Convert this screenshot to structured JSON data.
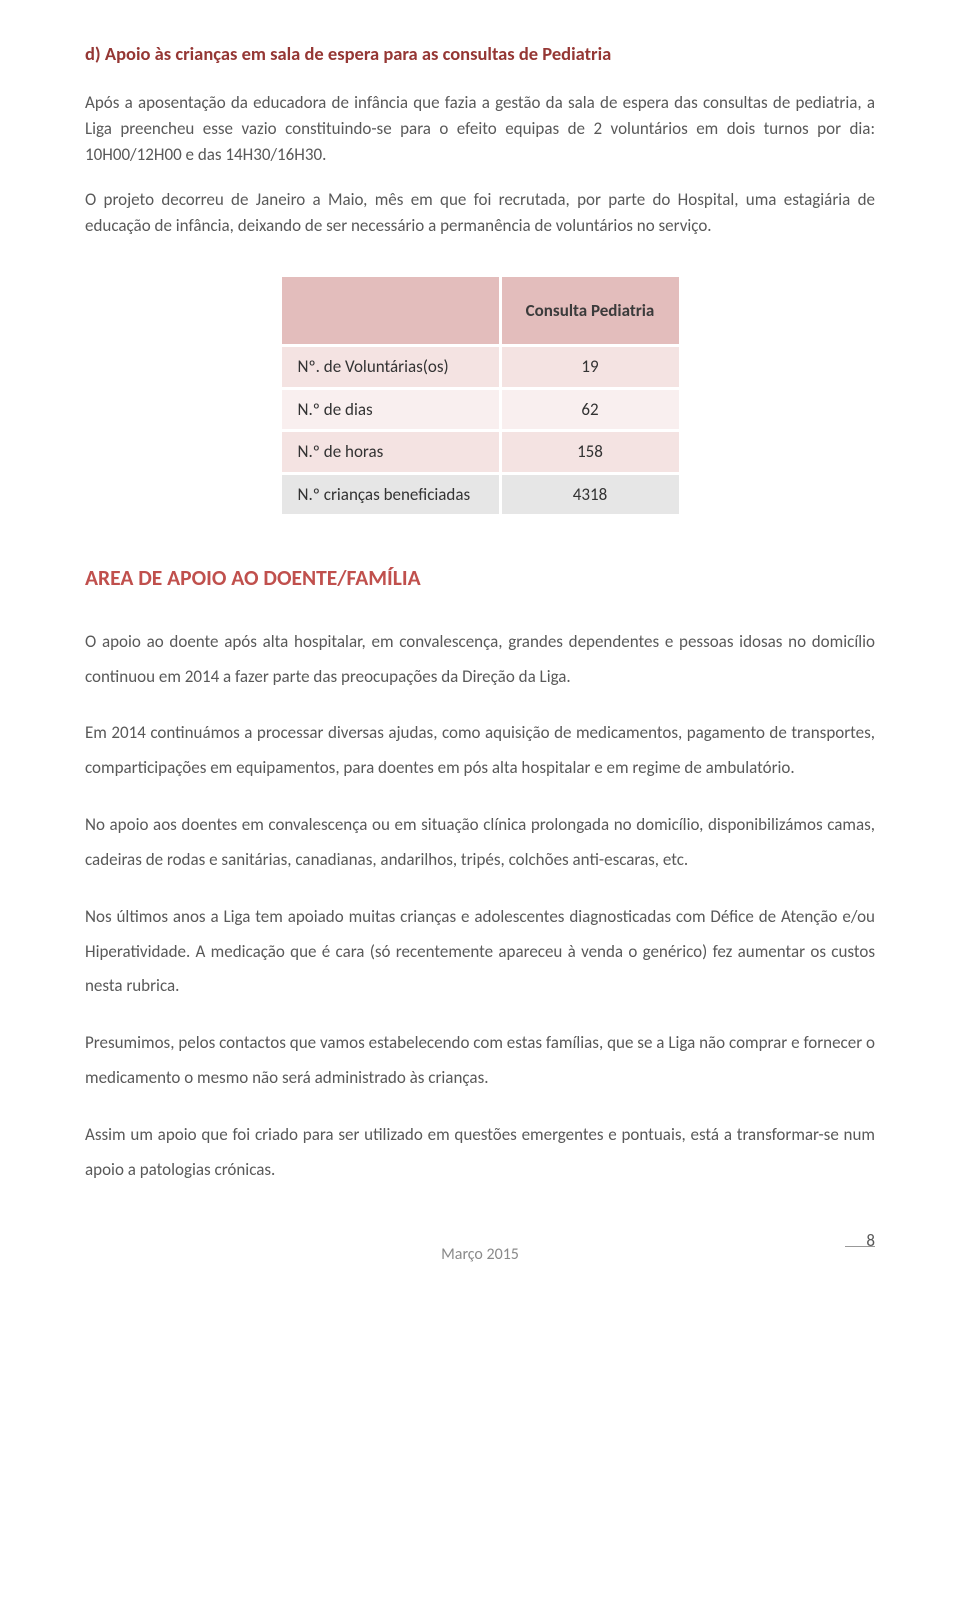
{
  "section_title": "d) Apoio às crianças em sala de espera para as consultas de Pediatria",
  "para1": "Após a aposentação da educadora de infância que fazia a gestão da sala de espera das consultas de pediatria, a Liga preencheu esse vazio constituindo-se para o efeito equipas de 2 voluntários em dois turnos por dia: 10H00/12H00 e das 14H30/16H30.",
  "para2": "O projeto decorreu de Janeiro a Maio, mês em que foi recrutada, por parte do Hospital, uma estagiária de educação de infância, deixando de ser necessário a permanência de voluntários no serviço.",
  "table": {
    "header": "Consulta Pediatria",
    "rows": [
      {
        "label": "Nº. de Voluntárias(os)",
        "value": "19"
      },
      {
        "label": "N.º de dias",
        "value": "62"
      },
      {
        "label": "N.º de horas",
        "value": "158"
      },
      {
        "label": "N.º crianças beneficiadas",
        "value": "4318"
      }
    ]
  },
  "area_title": "AREA DE APOIO AO DOENTE/FAMÍLIA",
  "body_paras": [
    "O apoio ao doente após alta hospitalar, em convalescença, grandes dependentes e pessoas idosas no domicílio continuou em 2014 a fazer parte das preocupações da Direção da Liga.",
    "Em 2014 continuámos a processar diversas ajudas, como aquisição de medicamentos, pagamento de transportes, comparticipações em equipamentos, para doentes em pós alta hospitalar e em regime de ambulatório.",
    "No apoio aos doentes em convalescença ou em situação clínica prolongada no domicílio, disponibilizámos camas, cadeiras de rodas e sanitárias, canadianas, andarilhos, tripés, colchões anti-escaras, etc.",
    "Nos últimos anos a Liga tem apoiado muitas crianças e adolescentes diagnosticadas com Défice de Atenção e/ou Hiperatividade. A medicação que é cara (só recentemente apareceu à venda o genérico) fez aumentar os custos nesta rubrica.",
    "Presumimos, pelos contactos que vamos estabelecendo com estas famílias, que se a Liga não comprar e fornecer o medicamento o mesmo não será administrado às crianças.",
    "Assim um apoio que foi criado para ser utilizado em questões emergentes e pontuais, está a transformar-se num apoio a patologias crónicas."
  ],
  "footer": {
    "date": "Março 2015",
    "page": "8"
  }
}
